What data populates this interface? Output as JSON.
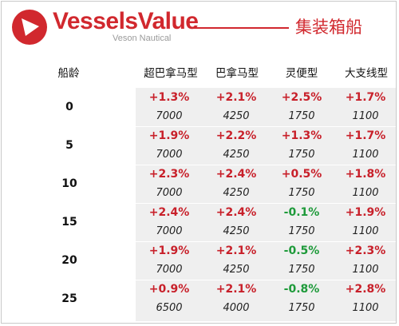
{
  "brand": {
    "name": "VesselsValue",
    "subtitle": "Veson Nautical",
    "accent_color": "#d1282e",
    "icon": "vesselsvalue-logo-icon"
  },
  "section_title": "集装箱船",
  "table": {
    "row_header": "船龄",
    "columns": [
      "超巴拿马型",
      "巴拿马型",
      "灵便型",
      "大支线型"
    ],
    "rows": [
      {
        "age": "0",
        "changes": [
          "+1.3%",
          "+2.1%",
          "+2.5%",
          "+1.7%"
        ],
        "values": [
          "7000",
          "4250",
          "1750",
          "1100"
        ]
      },
      {
        "age": "5",
        "changes": [
          "+1.9%",
          "+2.2%",
          "+1.3%",
          "+1.7%"
        ],
        "values": [
          "7000",
          "4250",
          "1750",
          "1100"
        ]
      },
      {
        "age": "10",
        "changes": [
          "+2.3%",
          "+2.4%",
          "+0.5%",
          "+1.8%"
        ],
        "values": [
          "7000",
          "4250",
          "1750",
          "1100"
        ]
      },
      {
        "age": "15",
        "changes": [
          "+2.4%",
          "+2.4%",
          "-0.1%",
          "+1.9%"
        ],
        "values": [
          "7000",
          "4250",
          "1750",
          "1100"
        ]
      },
      {
        "age": "20",
        "changes": [
          "+1.9%",
          "+2.1%",
          "-0.5%",
          "+2.3%"
        ],
        "values": [
          "7000",
          "4250",
          "1750",
          "1100"
        ]
      },
      {
        "age": "25",
        "changes": [
          "+0.9%",
          "+2.1%",
          "-0.8%",
          "+2.8%"
        ],
        "values": [
          "6500",
          "4000",
          "1750",
          "1100"
        ]
      }
    ],
    "colors": {
      "positive": "#c8202a",
      "negative": "#1e9a3a",
      "shade": "#efefef"
    }
  }
}
